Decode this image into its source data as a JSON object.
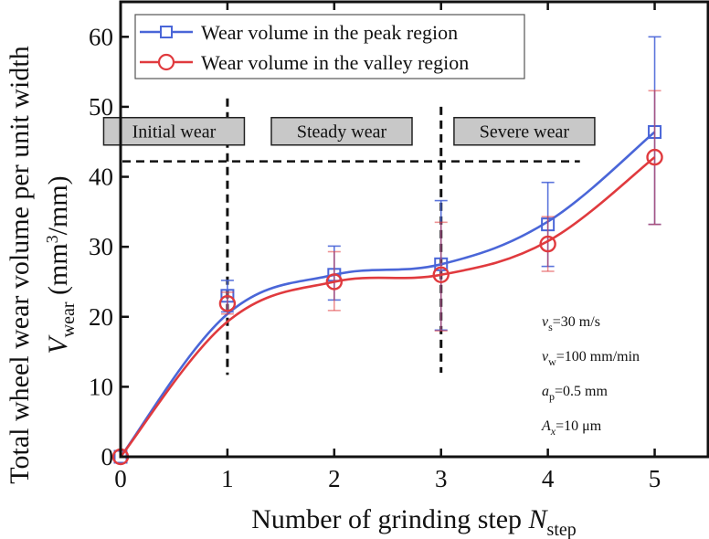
{
  "chart_data": {
    "type": "line",
    "title": "",
    "xlabel": "Number of grinding step N_step",
    "xlabel_parts": {
      "main": "Number of grinding step ",
      "italic": "N",
      "sub": "step"
    },
    "ylabel_line1": "Total wheel wear volume per unit width",
    "ylabel_line2": {
      "italic": "V",
      "sub": "wear",
      "unit_pre": " (mm",
      "sup": "3",
      "unit_post": "/mm)"
    },
    "xlim": [
      0,
      5.5
    ],
    "ylim": [
      0,
      65
    ],
    "xticks": [
      0,
      1,
      2,
      3,
      4,
      5
    ],
    "yticks": [
      0,
      10,
      20,
      30,
      40,
      50,
      60
    ],
    "grid": false,
    "legend_position": "top-left",
    "series": [
      {
        "name": "Wear volume in the peak region",
        "color": "#4a66d8",
        "marker": "square",
        "x": [
          0,
          1,
          2,
          3,
          4,
          5
        ],
        "y": [
          0,
          23.0,
          26.0,
          27.5,
          33.2,
          46.4
        ],
        "err_low": [
          0,
          20.7,
          22.4,
          18.1,
          27.2,
          33.2
        ],
        "err_high": [
          0,
          25.2,
          30.1,
          36.6,
          39.2,
          60.0
        ]
      },
      {
        "name": "Wear volume in the valley region",
        "color": "#e03a3e",
        "marker": "circle",
        "x": [
          0,
          1,
          2,
          3,
          4,
          5
        ],
        "y": [
          0,
          21.9,
          25.0,
          26.0,
          30.4,
          42.8
        ],
        "err_low": [
          0,
          20.4,
          20.9,
          18.0,
          26.5,
          33.2
        ],
        "err_high": [
          0,
          23.5,
          29.3,
          33.5,
          34.3,
          52.3
        ]
      }
    ],
    "annotations": {
      "stages": [
        {
          "label": "Initial wear",
          "x_center": 0.5,
          "y": 46.5
        },
        {
          "label": "Steady wear",
          "x_center": 2.07,
          "y": 46.5
        },
        {
          "label": "Severe wear",
          "x_center": 3.78,
          "y": 46.5
        }
      ],
      "vertical_dashed": [
        {
          "x": 1,
          "y_from": 11.7,
          "y_to": 51.2
        },
        {
          "x": 3,
          "y_from": 12.0,
          "y_to": 50.0
        }
      ],
      "horizontal_dashed": {
        "y": 42.2,
        "x_from": 0,
        "x_to": 4.3
      },
      "parameters": [
        {
          "italic": "v",
          "sub": "s",
          "text": "=30 m/s"
        },
        {
          "italic": "v",
          "sub": "w",
          "text": "=100 mm/min"
        },
        {
          "italic": "a",
          "sub": "p",
          "text": "=0.5 mm"
        },
        {
          "italic": "A",
          "sub": "x",
          "text": "=10 μm"
        }
      ]
    }
  }
}
